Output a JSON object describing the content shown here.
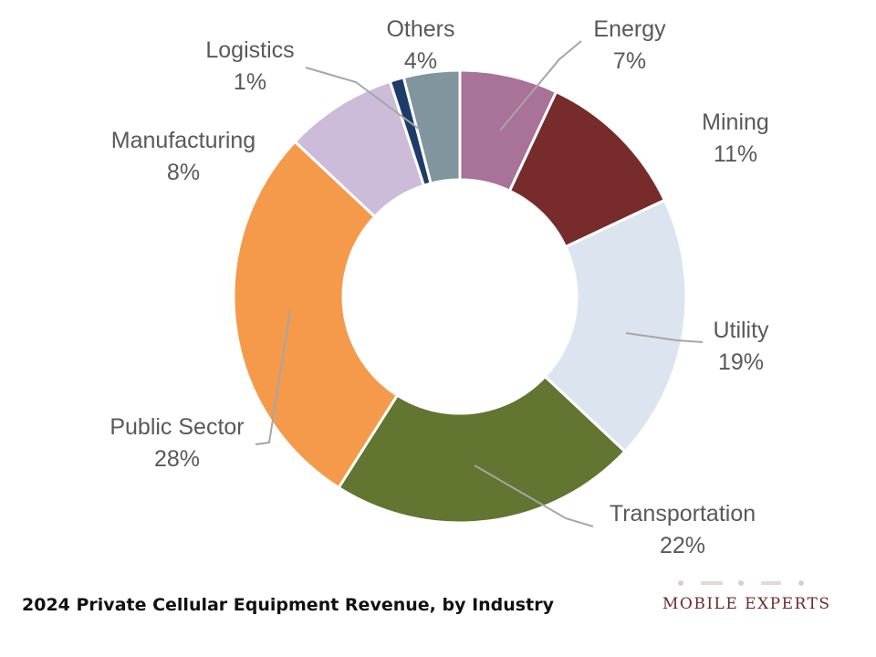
{
  "chart_data": {
    "type": "pie",
    "donut": true,
    "categories": [
      "Energy",
      "Mining",
      "Utility",
      "Transportation",
      "Public Sector",
      "Manufacturing",
      "Logistics",
      "Others"
    ],
    "values": [
      7,
      11,
      19,
      22,
      28,
      8,
      1,
      4
    ],
    "value_labels": [
      "7%",
      "11%",
      "19%",
      "22%",
      "28%",
      "8%",
      "1%",
      "4%"
    ],
    "colors": [
      "#a87299",
      "#772b2b",
      "#dce5ef",
      "#627531",
      "#f5994a",
      "#ccbcd9",
      "#1f3c69",
      "#80959e"
    ],
    "legend": "none"
  },
  "footer": {
    "caption": "2024 Private Cellular Equipment Revenue, by Industry",
    "logo_text": "MOBILE EXPERTS"
  }
}
